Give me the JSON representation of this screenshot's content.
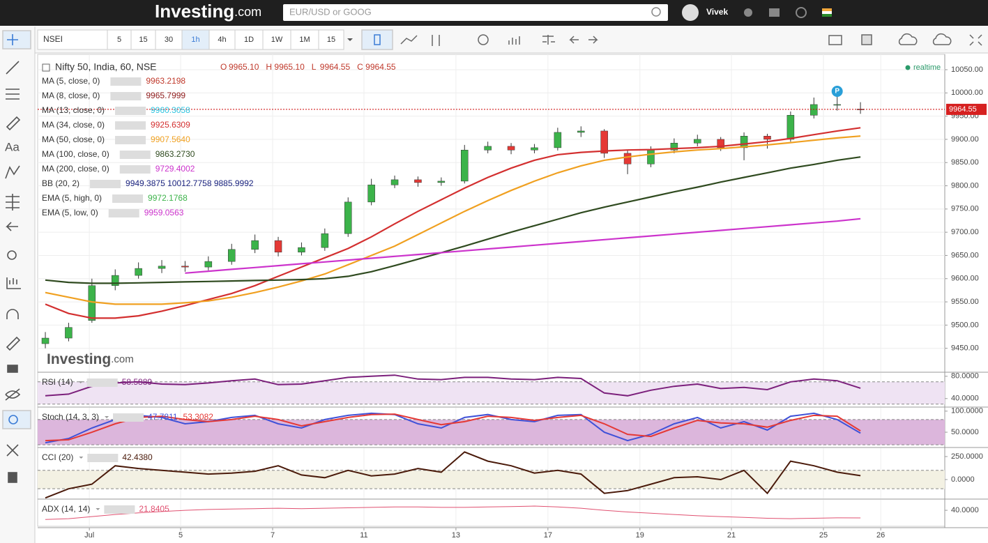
{
  "header": {
    "logo": "Investing",
    "logo_tld": ".com",
    "search_placeholder": "EUR/USD or GOOG",
    "user": "Vivek"
  },
  "toolbar": {
    "symbol": "NSEI",
    "intervals": [
      "5",
      "15",
      "30",
      "1h",
      "4h",
      "1D",
      "1W",
      "1M",
      "15"
    ]
  },
  "watermark": {
    "logo": "Investing",
    "tld": ".com"
  },
  "chart_data": [
    {
      "type": "candlestick",
      "title": "Nifty 50, India, 60, NSE",
      "ohlc_readout": [
        {
          "label": "O",
          "value": "9965.10"
        },
        {
          "label": "H",
          "value": "9965.10"
        },
        {
          "label": "L",
          "value": "9964.55"
        },
        {
          "label": "C",
          "value": "9964.55"
        }
      ],
      "realtime": "realtime",
      "marker": "P",
      "open": [
        9460,
        9472,
        9510,
        9585,
        9607,
        9622,
        9627,
        9625,
        9637,
        9663,
        9682,
        9657,
        9667,
        9697,
        9765,
        9802,
        9813,
        9807,
        9810,
        9877,
        9885,
        9877,
        9882,
        9915,
        9918,
        9870,
        9847,
        9877,
        9892,
        9900,
        9882,
        9907,
        9900,
        9952,
        9975,
        9965.1
      ],
      "high": [
        9485,
        9505,
        9600,
        9620,
        9635,
        9640,
        9638,
        9648,
        9675,
        9695,
        9690,
        9678,
        9708,
        9775,
        9815,
        9822,
        9820,
        9818,
        9888,
        9895,
        9892,
        9890,
        9925,
        9928,
        9922,
        9878,
        9885,
        9902,
        9910,
        9905,
        9915,
        9912,
        9960,
        9990,
        10005,
        9980
      ],
      "low": [
        9450,
        9465,
        9505,
        9575,
        9600,
        9612,
        9615,
        9618,
        9630,
        9655,
        9648,
        9650,
        9660,
        9690,
        9758,
        9795,
        9798,
        9800,
        9805,
        9870,
        9868,
        9870,
        9876,
        9905,
        9860,
        9825,
        9840,
        9870,
        9885,
        9875,
        9855,
        9880,
        9895,
        9945,
        9962,
        9955
      ],
      "close": [
        9472,
        9495,
        9585,
        9607,
        9622,
        9627,
        9625,
        9637,
        9663,
        9682,
        9657,
        9667,
        9697,
        9765,
        9802,
        9813,
        9807,
        9810,
        9877,
        9885,
        9877,
        9882,
        9915,
        9918,
        9870,
        9847,
        9877,
        9892,
        9900,
        9882,
        9907,
        9900,
        9952,
        9975,
        9975,
        9964.55
      ],
      "up_color": "#3cb34a",
      "down_color": "#e53935",
      "last_price": 9964.55,
      "indicators": [
        {
          "name": "MA (5, close, 0)",
          "color": "#c0392b",
          "readout": "9963.2198"
        },
        {
          "name": "MA (8, close, 0)",
          "color": "#8e1b1b",
          "readout": "9965.7999"
        },
        {
          "name": "MA (13, close, 0)",
          "color": "#2ec4e0",
          "readout": "9960.3058"
        },
        {
          "name": "MA (34, close, 0)",
          "color": "#d32f2f",
          "readout": "9925.6309",
          "values": [
            9545,
            9525,
            9515,
            9515,
            9520,
            9530,
            9542,
            9555,
            9568,
            9585,
            9605,
            9625,
            9645,
            9665,
            9690,
            9718,
            9745,
            9770,
            9795,
            9818,
            9838,
            9855,
            9867,
            9872,
            9875,
            9877,
            9878,
            9880,
            9882,
            9885,
            9890,
            9895,
            9902,
            9910,
            9918,
            9925
          ]
        },
        {
          "name": "MA (50, close, 0)",
          "color": "#f0a020",
          "readout": "9907.5640",
          "values": [
            9570,
            9560,
            9550,
            9545,
            9545,
            9545,
            9548,
            9552,
            9560,
            9570,
            9582,
            9595,
            9610,
            9630,
            9650,
            9670,
            9695,
            9720,
            9745,
            9768,
            9790,
            9810,
            9828,
            9843,
            9855,
            9862,
            9868,
            9873,
            9877,
            9880,
            9884,
            9888,
            9893,
            9898,
            9903,
            9907
          ]
        },
        {
          "name": "MA (100, close, 0)",
          "color": "#2f4a1f",
          "readout": "9863.2730",
          "values": [
            9597,
            9592,
            9590,
            9590,
            9591,
            9592,
            9593,
            9594,
            9595,
            9596,
            9597,
            9598,
            9600,
            9605,
            9615,
            9628,
            9642,
            9656,
            9670,
            9685,
            9700,
            9714,
            9728,
            9742,
            9754,
            9765,
            9776,
            9787,
            9797,
            9808,
            9818,
            9828,
            9838,
            9846,
            9855,
            9862
          ]
        },
        {
          "name": "MA (200, close, 0)",
          "color": "#cc33cc",
          "readout": "9729.4002",
          "values": [
            null,
            null,
            null,
            null,
            null,
            null,
            9612,
            9616,
            9620,
            9624,
            9628,
            9632,
            9636,
            9640,
            9644,
            9648,
            9652,
            9656,
            9660,
            9664,
            9668,
            9672,
            9676,
            9680,
            9684,
            9688,
            9692,
            9696,
            9700,
            9704,
            9708,
            9712,
            9716,
            9720,
            9724,
            9729
          ]
        },
        {
          "name": "BB (20, 2)",
          "color": "#1a237e",
          "readout": "9949.3875 10012.7758 9885.9992"
        },
        {
          "name": "EMA (5, high, 0)",
          "color": "#3cb34a",
          "readout": "9972.1768"
        },
        {
          "name": "EMA (5, low, 0)",
          "color": "#cc33cc",
          "readout": "9959.0563"
        }
      ],
      "xlim": [
        -0.33,
        38.62
      ],
      "xticks": [
        {
          "value": 1.89,
          "label": "Jul"
        },
        {
          "value": 5.81,
          "label": "5"
        },
        {
          "value": 9.76,
          "label": "7"
        },
        {
          "value": 13.68,
          "label": "11"
        },
        {
          "value": 17.63,
          "label": "13"
        },
        {
          "value": 21.58,
          "label": "17"
        },
        {
          "value": 25.53,
          "label": "19"
        },
        {
          "value": 29.46,
          "label": "21"
        },
        {
          "value": 33.41,
          "label": "25"
        },
        {
          "value": 35.87,
          "label": "26"
        }
      ],
      "ylim": [
        9400,
        10083
      ],
      "yticks": [
        {
          "value": 9450,
          "label": "9450.00"
        },
        {
          "value": 9500,
          "label": "9500.00"
        },
        {
          "value": 9550,
          "label": "9550.00"
        },
        {
          "value": 9600,
          "label": "9600.00"
        },
        {
          "value": 9650,
          "label": "9650.00"
        },
        {
          "value": 9700,
          "label": "9700.00"
        },
        {
          "value": 9750,
          "label": "9750.00"
        },
        {
          "value": 9800,
          "label": "9800.00"
        },
        {
          "value": 9850,
          "label": "9850.00"
        },
        {
          "value": 9900,
          "label": "9900.00"
        },
        {
          "value": 9950,
          "label": "9950.00"
        },
        {
          "value": 10000,
          "label": "10000.00"
        },
        {
          "value": 10050,
          "label": "10050.00"
        }
      ],
      "grid": true
    },
    {
      "type": "line",
      "title": "RSI (14)",
      "readout": [
        "58.5889"
      ],
      "ylim": [
        26,
        86
      ],
      "yticks": [
        {
          "value": 80,
          "label": "80.0000"
        },
        {
          "value": 40,
          "label": "40.0000"
        }
      ],
      "levels": [
        70,
        30
      ],
      "band_color": "#efe3f3",
      "series": [
        {
          "color": "#7b1f7b",
          "values": [
            45,
            48,
            62,
            68,
            70,
            66,
            65,
            68,
            72,
            75,
            65,
            66,
            72,
            78,
            80,
            82,
            75,
            74,
            78,
            78,
            75,
            74,
            78,
            76,
            50,
            45,
            55,
            62,
            66,
            58,
            60,
            56,
            70,
            75,
            72,
            58.59
          ]
        }
      ]
    },
    {
      "type": "line",
      "title": "Stoch (14, 3, 3)",
      "readout": [
        "47.7811",
        "53.3082"
      ],
      "ylim": [
        17,
        108
      ],
      "yticks": [
        {
          "value": 100,
          "label": "100.0000"
        },
        {
          "value": 50,
          "label": "50.0000"
        }
      ],
      "levels": [
        80,
        20
      ],
      "band_color": "#dcb6dc",
      "series": [
        {
          "color": "#3f51d8",
          "values": [
            25,
            35,
            60,
            80,
            90,
            85,
            70,
            75,
            85,
            90,
            70,
            60,
            80,
            90,
            95,
            92,
            70,
            60,
            85,
            92,
            80,
            75,
            90,
            92,
            50,
            30,
            45,
            70,
            85,
            60,
            75,
            55,
            88,
            95,
            80,
            47.78
          ]
        },
        {
          "color": "#e53935",
          "values": [
            30,
            32,
            50,
            70,
            85,
            88,
            80,
            75,
            80,
            88,
            80,
            65,
            75,
            85,
            92,
            93,
            80,
            68,
            75,
            88,
            85,
            78,
            85,
            90,
            70,
            45,
            40,
            60,
            78,
            72,
            70,
            62,
            78,
            90,
            88,
            53.31
          ]
        }
      ]
    },
    {
      "type": "line",
      "title": "CCI (20)",
      "readout": [
        "42.4380"
      ],
      "ylim": [
        -205,
        341
      ],
      "yticks": [
        {
          "value": 250,
          "label": "250.0000"
        },
        {
          "value": 0,
          "label": "0.0000"
        }
      ],
      "levels": [
        100,
        -100
      ],
      "band_color": "#f3f1e3",
      "series": [
        {
          "color": "#4a1a0a",
          "values": [
            -200,
            -100,
            -50,
            150,
            120,
            100,
            80,
            60,
            70,
            90,
            150,
            50,
            20,
            100,
            40,
            60,
            120,
            80,
            300,
            200,
            150,
            70,
            100,
            60,
            -150,
            -120,
            -50,
            20,
            30,
            0,
            100,
            -150,
            200,
            150,
            80,
            42.44
          ]
        }
      ]
    },
    {
      "type": "line",
      "title": "ADX (14, 14)",
      "readout": [
        "21.8405"
      ],
      "ylim": [
        2,
        65
      ],
      "yticks": [
        {
          "value": 40,
          "label": "40.0000"
        }
      ],
      "series": [
        {
          "color": "#e05070",
          "values": [
            18,
            20,
            25,
            30,
            34,
            37,
            40,
            42,
            43,
            44,
            45,
            44,
            45,
            46,
            47,
            48,
            48,
            47,
            47,
            48,
            49,
            50,
            48,
            45,
            40,
            36,
            33,
            30,
            27,
            25,
            23,
            21,
            20,
            21,
            22,
            21.84
          ]
        }
      ]
    }
  ]
}
